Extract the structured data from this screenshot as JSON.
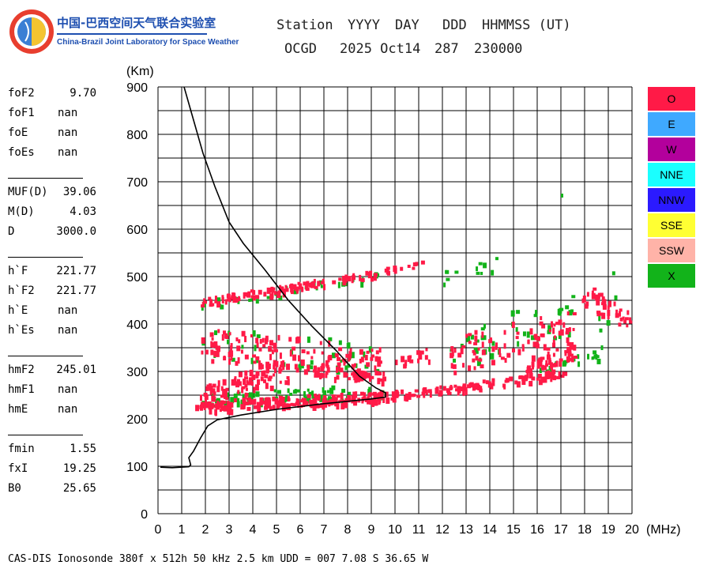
{
  "logo": {
    "cn_text": "中国-巴西空间天气联合实验室",
    "en_text": "China-Brazil Joint Laboratory for Space Weather"
  },
  "header": {
    "labels": [
      "Station",
      "YYYY",
      "DAY",
      "DDD",
      "HHMMSS (UT)"
    ],
    "values": [
      "OCGD",
      "2025 Oct14",
      "287",
      "230000"
    ]
  },
  "params": [
    {
      "name": "foF2",
      "value": "9.70"
    },
    {
      "name": "foF1",
      "value": "nan"
    },
    {
      "name": "foE",
      "value": "nan"
    },
    {
      "name": "foEs",
      "value": "nan"
    },
    {
      "name": "MUF(D)",
      "value": "39.06"
    },
    {
      "name": "M(D)",
      "value": "4.03"
    },
    {
      "name": "D",
      "value": "3000.0"
    },
    {
      "name": "h`F",
      "value": "221.77"
    },
    {
      "name": "h`F2",
      "value": "221.77"
    },
    {
      "name": "h`E",
      "value": "nan"
    },
    {
      "name": "h`Es",
      "value": "nan"
    },
    {
      "name": "hmF2",
      "value": "245.01"
    },
    {
      "name": "hmF1",
      "value": "nan"
    },
    {
      "name": "hmE",
      "value": "nan"
    },
    {
      "name": "fmin",
      "value": "1.55"
    },
    {
      "name": "fxI",
      "value": "19.25"
    },
    {
      "name": "B0",
      "value": "25.65"
    }
  ],
  "legend": [
    {
      "label": "O",
      "color": "#ff1a47"
    },
    {
      "label": "E",
      "color": "#3fa9ff"
    },
    {
      "label": "W",
      "color": "#b3009c"
    },
    {
      "label": "NNE",
      "color": "#1affff"
    },
    {
      "label": "NNW",
      "color": "#2b1aff"
    },
    {
      "label": "SSE",
      "color": "#ffff33"
    },
    {
      "label": "SSW",
      "color": "#ffb3a8"
    },
    {
      "label": "X",
      "color": "#12b31a"
    }
  ],
  "footer": "CAS-DIS Ionosonde 380f x 512h 50 kHz 2.5 km UDD = 007 7.08 S 36.65 W",
  "chart_data": {
    "type": "scatter",
    "xlabel": "(MHz)",
    "ylabel": "(Km)",
    "xlim": [
      0,
      20
    ],
    "ylim": [
      0,
      900
    ],
    "x_ticks": [
      "0",
      "1",
      "2",
      "3",
      "4",
      "5",
      "6",
      "7",
      "8",
      "9",
      "10",
      "11",
      "12",
      "13",
      "14",
      "15",
      "16",
      "17",
      "18",
      "19",
      "20"
    ],
    "y_ticks": [
      "0",
      "100",
      "200",
      "300",
      "400",
      "500",
      "600",
      "700",
      "800",
      "900"
    ],
    "grid": true,
    "legend_placement": "right",
    "series": [
      {
        "name": "O",
        "color": "#ff1a47",
        "bands": [
          {
            "x": [
              1.5,
              9.6
            ],
            "y": [
              228,
              250
            ],
            "spread": 12,
            "n": 220
          },
          {
            "x": [
              1.7,
              5.5
            ],
            "y": [
              250,
              305
            ],
            "spread": 25,
            "n": 90
          },
          {
            "x": [
              9.6,
              13
            ],
            "y": [
              252,
              268
            ],
            "spread": 8,
            "n": 50
          },
          {
            "x": [
              13,
              17.2
            ],
            "y": [
              268,
              300
            ],
            "spread": 10,
            "n": 60
          },
          {
            "x": [
              15.5,
              17.6
            ],
            "y": [
              305,
              345
            ],
            "spread": 15,
            "n": 50
          },
          {
            "x": [
              1.7,
              9.3
            ],
            "y": [
              447,
              510
            ],
            "spread": 8,
            "n": 110
          },
          {
            "x": [
              9.5,
              11.2
            ],
            "y": [
              515,
              530
            ],
            "spread": 6,
            "n": 12
          },
          {
            "x": [
              1.8,
              9.5
            ],
            "y": [
              360,
              320
            ],
            "spread": 35,
            "n": 140
          },
          {
            "x": [
              6.5,
              9.5
            ],
            "y": [
              305,
              290
            ],
            "spread": 12,
            "n": 40
          },
          {
            "x": [
              10,
              11.5
            ],
            "y": [
              320,
              340
            ],
            "spread": 15,
            "n": 18
          },
          {
            "x": [
              12.3,
              17.5
            ],
            "y": [
              340,
              390
            ],
            "spread": 40,
            "n": 90
          },
          {
            "x": [
              17.8,
              20
            ],
            "y": [
              470,
              400
            ],
            "spread": 25,
            "n": 40
          }
        ]
      },
      {
        "name": "X",
        "color": "#12b31a",
        "bands": [
          {
            "x": [
              1.5,
              9.6
            ],
            "y": [
              240,
              262
            ],
            "spread": 15,
            "n": 70
          },
          {
            "x": [
              1.7,
              9.3
            ],
            "y": [
              440,
              505
            ],
            "spread": 10,
            "n": 30
          },
          {
            "x": [
              1.8,
              9.5
            ],
            "y": [
              370,
              330
            ],
            "spread": 35,
            "n": 40
          },
          {
            "x": [
              12.3,
              17.5
            ],
            "y": [
              350,
              420
            ],
            "spread": 45,
            "n": 45
          },
          {
            "x": [
              12,
              15
            ],
            "y": [
              500,
              540
            ],
            "spread": 15,
            "n": 12
          },
          {
            "x": [
              16,
              18.5
            ],
            "y": [
              300,
              340
            ],
            "spread": 12,
            "n": 20
          },
          {
            "x": [
              18.5,
              19.5
            ],
            "y": [
              370,
              520
            ],
            "spread": 50,
            "n": 8
          }
        ]
      }
    ],
    "isolated_points": [
      {
        "series": "X",
        "x": 17.0,
        "y": 675
      }
    ],
    "profile_curve": {
      "name": "true-height profile",
      "color": "#000000",
      "points": [
        [
          0.1,
          98
        ],
        [
          0.6,
          97
        ],
        [
          1.3,
          99
        ],
        [
          1.38,
          103
        ],
        [
          1.3,
          118
        ],
        [
          1.5,
          132
        ],
        [
          1.8,
          160
        ],
        [
          2.1,
          185
        ],
        [
          2.5,
          198
        ],
        [
          3.5,
          208
        ],
        [
          5,
          220
        ],
        [
          7,
          232
        ],
        [
          9,
          242
        ],
        [
          9.6,
          246
        ],
        [
          9.6,
          255
        ],
        [
          9.2,
          265
        ],
        [
          8.5,
          290
        ],
        [
          7.5,
          345
        ],
        [
          6.5,
          395
        ],
        [
          5.5,
          450
        ],
        [
          4.5,
          515
        ],
        [
          3.6,
          570
        ],
        [
          3.0,
          615
        ],
        [
          2.4,
          690
        ],
        [
          1.9,
          760
        ],
        [
          1.5,
          830
        ],
        [
          1.1,
          900
        ]
      ]
    }
  }
}
